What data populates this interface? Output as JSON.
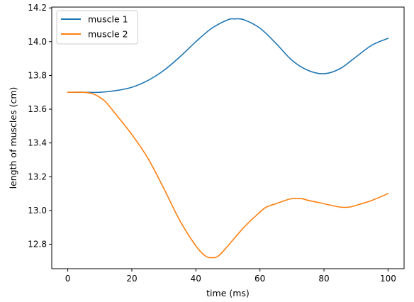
{
  "chart_data": {
    "type": "line",
    "title": "",
    "xlabel": "time (ms)",
    "ylabel": "length of muscles (cm)",
    "xlim": [
      -5,
      105
    ],
    "ylim": [
      12.655,
      14.205
    ],
    "xticks": [
      0,
      20,
      40,
      60,
      80,
      100
    ],
    "xtick_labels": [
      "0",
      "20",
      "40",
      "60",
      "80",
      "100"
    ],
    "yticks": [
      12.8,
      13.0,
      13.2,
      13.4,
      13.6,
      13.8,
      14.0,
      14.2
    ],
    "ytick_labels": [
      "12.8",
      "13.0",
      "13.2",
      "13.4",
      "13.6",
      "13.8",
      "14.0",
      "14.2"
    ],
    "grid": false,
    "legend_position": "top-left",
    "series": [
      {
        "name": "muscle 1",
        "color": "#1f77b4",
        "x": [
          0,
          5,
          10,
          15,
          20,
          25,
          30,
          35,
          40,
          45,
          50,
          52,
          55,
          60,
          65,
          70,
          75,
          80,
          85,
          90,
          95,
          100
        ],
        "y": [
          13.7,
          13.7,
          13.7,
          13.71,
          13.73,
          13.77,
          13.83,
          13.91,
          14.0,
          14.08,
          14.13,
          14.135,
          14.13,
          14.08,
          13.99,
          13.89,
          13.83,
          13.81,
          13.84,
          13.91,
          13.98,
          14.02
        ]
      },
      {
        "name": "muscle 2",
        "color": "#ff7f0e",
        "x": [
          0,
          5,
          8,
          10,
          12,
          15,
          20,
          25,
          30,
          35,
          40,
          43,
          45,
          47,
          50,
          55,
          60,
          62,
          65,
          68,
          70,
          73,
          75,
          80,
          85,
          88,
          90,
          95,
          100
        ],
        "y": [
          13.7,
          13.7,
          13.69,
          13.67,
          13.64,
          13.57,
          13.45,
          13.31,
          13.13,
          12.94,
          12.79,
          12.73,
          12.72,
          12.73,
          12.79,
          12.9,
          12.99,
          13.02,
          13.04,
          13.06,
          13.07,
          13.07,
          13.06,
          13.04,
          13.02,
          13.02,
          13.03,
          13.06,
          13.1
        ]
      }
    ]
  }
}
